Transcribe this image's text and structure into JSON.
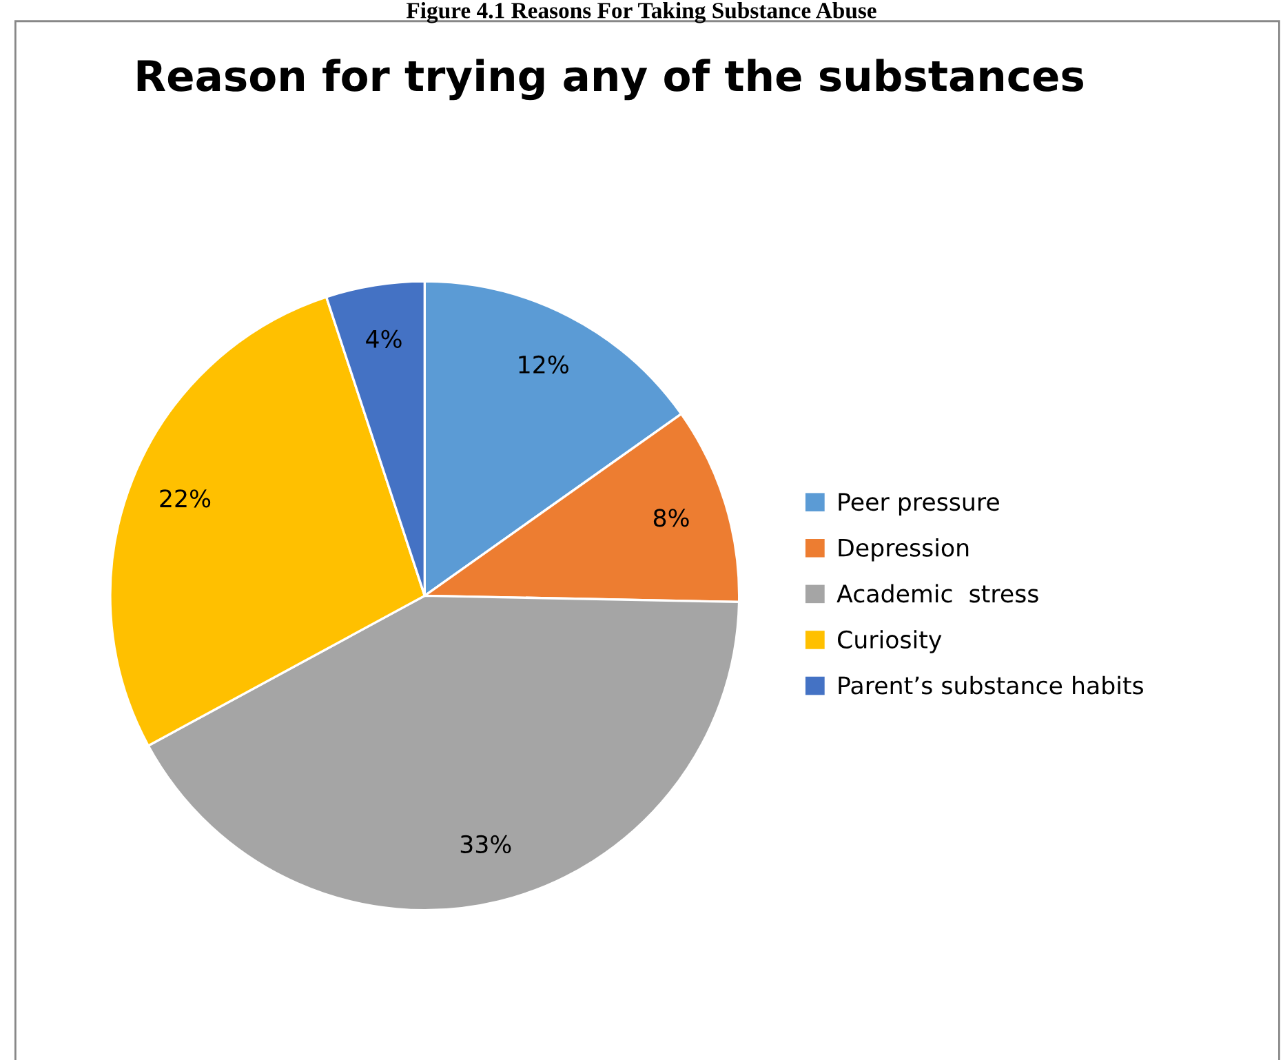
{
  "chart_data": {
    "type": "pie",
    "title": "Reason for trying any of the substances",
    "annotations": [
      "Figure 4.1 Reasons For Taking Substance Abuse"
    ],
    "categories": [
      "Peer pressure",
      "Depression",
      "Academic  stress",
      "Curiosity",
      "Parent’s substance habits"
    ],
    "values": [
      12,
      8,
      33,
      22,
      4
    ],
    "value_labels": [
      "12%",
      "8%",
      "33%",
      "22%",
      "4%"
    ],
    "colors": [
      "#5b9bd5",
      "#ed7d31",
      "#a5a5a5",
      "#ffc000",
      "#4472c4"
    ],
    "legend": "right"
  }
}
